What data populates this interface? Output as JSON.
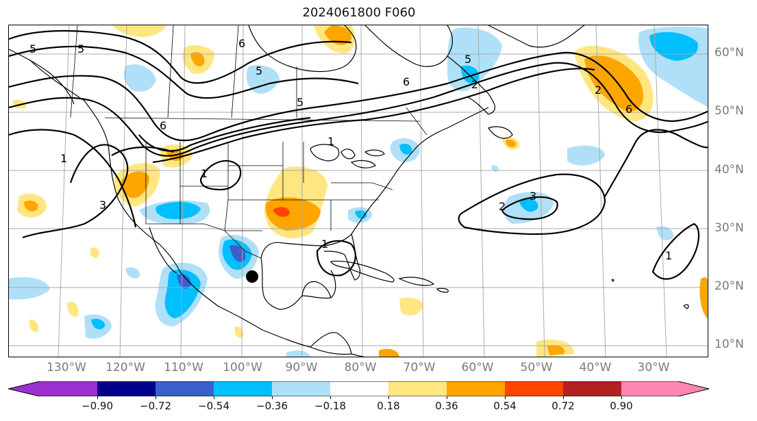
{
  "title": "2024061800 F060",
  "lat_labels": [
    "60°N",
    "50°N",
    "40°N",
    "30°N",
    "20°N",
    "10°N"
  ],
  "lon_labels": [
    "130°W",
    "120°W",
    "110°W",
    "100°W",
    "90°W",
    "80°W",
    "70°W",
    "60°W",
    "50°W",
    "40°W",
    "30°W"
  ],
  "colorbar": {
    "ticks": [
      "−0.90",
      "−0.72",
      "−0.54",
      "−0.36",
      "−0.18",
      "0.18",
      "0.36",
      "0.54",
      "0.72",
      "0.90"
    ],
    "colors": [
      "#9b30d0",
      "#00008b",
      "#3a5fcd",
      "#00bfff",
      "#b0e0f8",
      "#ffffff",
      "#ffe680",
      "#ffa500",
      "#ff4500",
      "#b22222",
      "#ff85b3"
    ]
  },
  "contour_labels": [
    "5",
    "5",
    "6",
    "5",
    "6",
    "6",
    "5",
    "6",
    "1",
    "1",
    "3",
    "1",
    "2",
    "3",
    "1",
    "2",
    "5",
    "2",
    "1"
  ],
  "marker": "storm-center"
}
